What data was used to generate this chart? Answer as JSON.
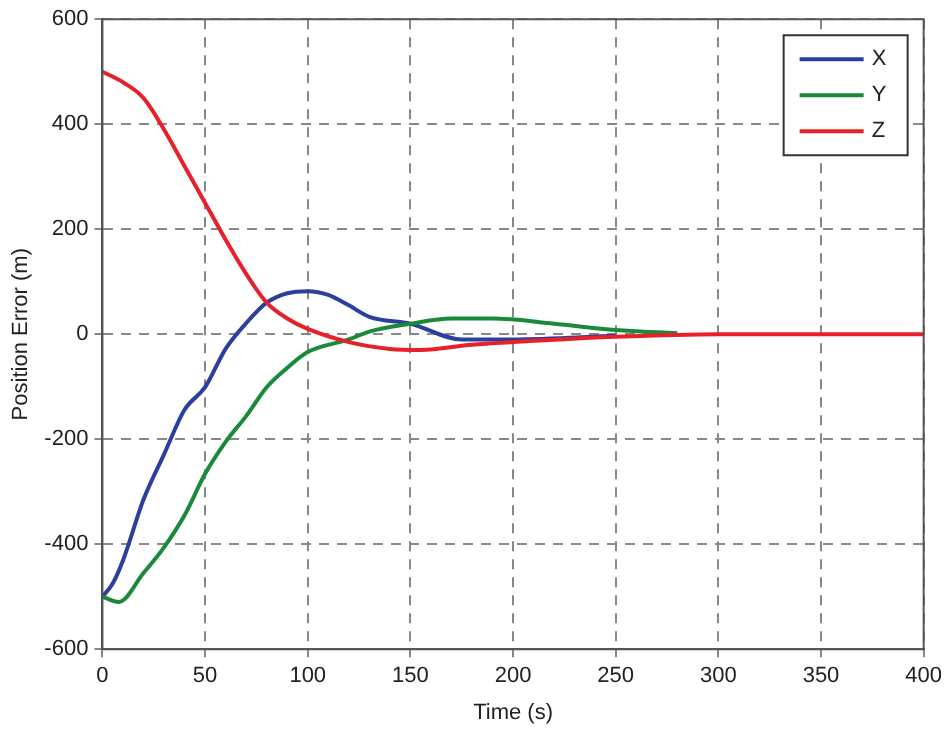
{
  "chart_data": {
    "type": "line",
    "xlabel": "Time (s)",
    "ylabel": "Position Error (m)",
    "xlim": [
      0,
      400
    ],
    "xticks": [
      0,
      50,
      100,
      150,
      200,
      250,
      300,
      350,
      400
    ],
    "ylim": [
      -600,
      600
    ],
    "yticks": [
      -600,
      -400,
      -200,
      0,
      200,
      400,
      600
    ],
    "grid": true,
    "legend": "top right",
    "marker": "none",
    "line_style": "solid",
    "series": [
      {
        "name": "X",
        "color": "#2b3f9e",
        "x": [
          0,
          5,
          10,
          20,
          30,
          40,
          50,
          60,
          70,
          80,
          90,
          100,
          110,
          120,
          130,
          150,
          175,
          200,
          250
        ],
        "values": [
          -500,
          -475,
          -431,
          -315,
          -229,
          -144,
          -101,
          -28,
          21,
          60,
          78,
          82,
          75,
          55,
          33,
          20,
          -10,
          -10,
          -3
        ]
      },
      {
        "name": "Y",
        "color": "#1a8a3a",
        "x": [
          0,
          8,
          20,
          30,
          40,
          50,
          60,
          70,
          80,
          90,
          100,
          120,
          130,
          150,
          170,
          190,
          220,
          250,
          280
        ],
        "values": [
          -500,
          -510,
          -455,
          -406,
          -345,
          -266,
          -205,
          -156,
          -101,
          -64,
          -34,
          -10,
          5,
          20,
          30,
          30,
          20,
          8,
          2
        ]
      },
      {
        "name": "Z",
        "color": "#e8202a",
        "x": [
          0,
          10,
          20,
          30,
          40,
          50,
          60,
          70,
          80,
          90,
          100,
          120,
          140,
          155,
          180,
          200,
          250,
          300,
          350,
          400
        ],
        "values": [
          500,
          480,
          450,
          390,
          320,
          250,
          180,
          115,
          60,
          30,
          10,
          -15,
          -28,
          -30,
          -20,
          -15,
          -5,
          0,
          0,
          0
        ]
      }
    ]
  }
}
